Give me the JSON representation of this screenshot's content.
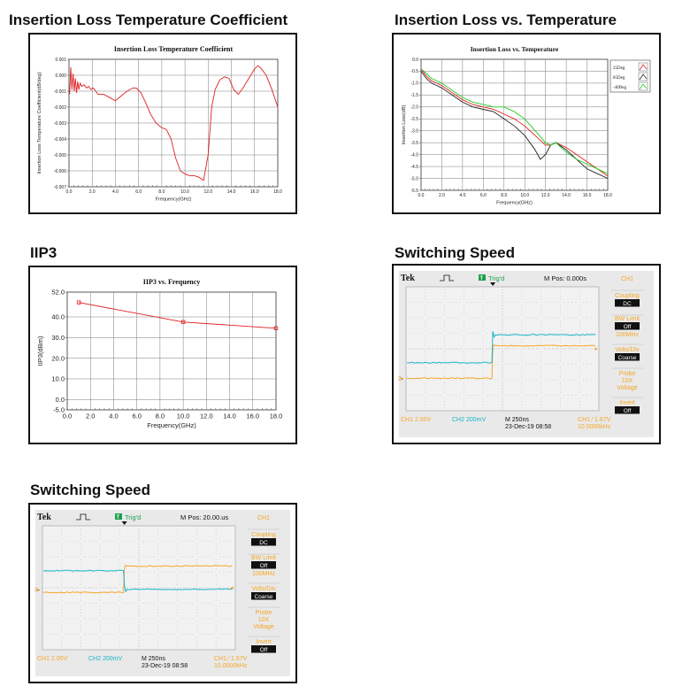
{
  "sections": {
    "il_coeff": "Insertion Loss Temperature Coefficient",
    "il_temp": "Insertion Loss vs. Temperature",
    "iip3": "IIP3",
    "sw1": "Switching Speed",
    "sw2": "Switching Speed"
  },
  "colors": {
    "red": "#e02020",
    "black": "#222222",
    "green": "#22cc22",
    "cyan": "#18b4c4",
    "orange": "#f5a623",
    "grid": "#7a7a7a"
  },
  "chart_data": [
    {
      "id": "il_coeff",
      "type": "line",
      "title": "Insertion Loss Temperature Coefficient",
      "xlabel": "Frequency(GHz)",
      "ylabel": "Insertion Loss Temperature Coefficient(dB/deg)",
      "xlim": [
        0,
        18
      ],
      "ylim": [
        -0.007,
        0.001
      ],
      "xticks": [
        "0.0",
        "2.0",
        "4.0",
        "6.0",
        "8.0",
        "10.0",
        "12.0",
        "14.0",
        "16.0",
        "18.0"
      ],
      "yticks": [
        "0.001",
        "0.000",
        "-0.001",
        "-0.002",
        "-0.003",
        "-0.004",
        "-0.005",
        "-0.006",
        "-0.007"
      ],
      "grid": true,
      "series": [
        {
          "color": "#e02020",
          "x": [
            0.05,
            0.15,
            0.25,
            0.35,
            0.45,
            0.55,
            0.65,
            0.75,
            0.85,
            0.95,
            1.1,
            1.3,
            1.5,
            1.7,
            1.9,
            2.1,
            2.3,
            2.5,
            3.0,
            3.5,
            4.0,
            4.5,
            5.0,
            5.5,
            5.8,
            6.2,
            6.6,
            7.0,
            7.5,
            8.0,
            8.4,
            8.8,
            9.2,
            9.6,
            10.0,
            10.4,
            10.8,
            11.2,
            11.6,
            12.0,
            12.3,
            12.6,
            13.0,
            13.4,
            13.8,
            14.2,
            14.6,
            15.0,
            15.5,
            16.0,
            16.3,
            16.6,
            17.0,
            17.5,
            18.0
          ],
          "y": [
            -0.0012,
            0.0005,
            -0.0009,
            0.0001,
            -0.001,
            -0.0002,
            -0.0011,
            -0.0004,
            -0.0009,
            -0.0005,
            -0.0007,
            -0.0006,
            -0.0008,
            -0.0007,
            -0.0009,
            -0.0008,
            -0.001,
            -0.0012,
            -0.0012,
            -0.0014,
            -0.0016,
            -0.0013,
            -0.001,
            -0.0008,
            -0.0008,
            -0.0011,
            -0.0017,
            -0.0024,
            -0.003,
            -0.0033,
            -0.0034,
            -0.004,
            -0.0052,
            -0.006,
            -0.0062,
            -0.0063,
            -0.0063,
            -0.0064,
            -0.0066,
            -0.005,
            -0.002,
            -0.0009,
            -0.0003,
            -0.0001,
            -0.0002,
            -0.0009,
            -0.0012,
            -0.0008,
            -0.0002,
            0.0004,
            0.0006,
            0.0004,
            0.0,
            -0.0009,
            -0.002
          ]
        }
      ]
    },
    {
      "id": "il_temp",
      "type": "line",
      "title": "Insertion Loss vs. Temperature",
      "xlabel": "Frequency(GHz)",
      "ylabel": "Insertion Loss(dB)",
      "xlim": [
        0,
        18
      ],
      "ylim": [
        -5.5,
        0
      ],
      "xticks": [
        "0.0",
        "2.0",
        "4.0",
        "6.0",
        "8.0",
        "10.0",
        "12.0",
        "14.0",
        "16.0",
        "18.0"
      ],
      "yticks": [
        "0.0",
        "-0.5",
        "-1.0",
        "-1.5",
        "-2.0",
        "-2.5",
        "-3.0",
        "-3.5",
        "-4.0",
        "-4.5",
        "-5.0",
        "-5.5"
      ],
      "grid": true,
      "legend": "top-right",
      "series": [
        {
          "name": "25Deg",
          "color": "#e02020",
          "x": [
            0,
            0.5,
            1,
            1.5,
            2,
            3,
            4,
            5,
            6,
            7,
            8,
            9,
            10,
            11,
            12,
            12.5,
            13,
            13.5,
            14,
            15,
            16,
            17,
            18
          ],
          "y": [
            -0.4,
            -0.7,
            -0.9,
            -1.0,
            -1.1,
            -1.4,
            -1.7,
            -1.9,
            -2.0,
            -2.1,
            -2.3,
            -2.5,
            -2.8,
            -3.2,
            -3.6,
            -3.6,
            -3.5,
            -3.6,
            -3.7,
            -4.0,
            -4.3,
            -4.6,
            -4.9
          ]
        },
        {
          "name": "85Deg",
          "color": "#222222",
          "x": [
            0,
            0.5,
            1,
            1.5,
            2,
            3,
            4,
            5,
            6,
            7,
            8,
            9,
            10,
            11,
            11.5,
            12,
            12.5,
            13,
            14,
            15,
            16,
            17,
            18
          ],
          "y": [
            -0.5,
            -0.8,
            -1.0,
            -1.1,
            -1.2,
            -1.5,
            -1.8,
            -2.0,
            -2.1,
            -2.2,
            -2.5,
            -2.8,
            -3.2,
            -3.8,
            -4.2,
            -4.0,
            -3.6,
            -3.5,
            -3.8,
            -4.2,
            -4.6,
            -4.8,
            -5.0
          ]
        },
        {
          "name": "-40Deg",
          "color": "#22cc22",
          "x": [
            0,
            0.5,
            1,
            1.5,
            2,
            3,
            4,
            5,
            6,
            7,
            8,
            9,
            10,
            11,
            12,
            12.5,
            13,
            13.5,
            14,
            15,
            16,
            17,
            18
          ],
          "y": [
            -0.4,
            -0.6,
            -0.8,
            -0.9,
            -1.0,
            -1.3,
            -1.6,
            -1.8,
            -1.9,
            -2.0,
            -2.0,
            -2.2,
            -2.5,
            -3.0,
            -3.5,
            -3.6,
            -3.5,
            -3.7,
            -3.9,
            -4.2,
            -4.4,
            -4.6,
            -4.8
          ]
        }
      ]
    },
    {
      "id": "iip3",
      "type": "line",
      "title": "IIP3 vs. Frequency",
      "xlabel": "Frequency(GHz)",
      "ylabel": "IIP3(dBm)",
      "xlim": [
        0,
        18
      ],
      "ylim": [
        -5,
        52
      ],
      "ytick_values": [
        52,
        40,
        30,
        20,
        10,
        0,
        -5
      ],
      "xticks": [
        "0.0",
        "2.0",
        "4.0",
        "6.0",
        "8.0",
        "10.0",
        "12.0",
        "14.0",
        "16.0",
        "18.0"
      ],
      "yticks": [
        "52.0",
        "40.0",
        "30.0",
        "20.0",
        "10.0",
        "0.0",
        "-5.0"
      ],
      "grid": true,
      "series": [
        {
          "color": "#e02020",
          "x": [
            1,
            10,
            18
          ],
          "y": [
            47,
            37.5,
            34.5
          ]
        }
      ]
    }
  ],
  "scopes": [
    {
      "id": "sw1",
      "brand": "Tek",
      "trig": "Trig'd",
      "mpos": "M Pos: 0.000s",
      "ch_header": "CH1",
      "coupling_label": "Coupling",
      "coupling_value": "DC",
      "bw_label": "BW Limit",
      "bw_value": "Off",
      "bw_freq": "100MHz",
      "volts_label": "Volts/Div",
      "volts_value": "Coarse",
      "probe_label": "Probe",
      "probe_value1": "10X",
      "probe_value2": "Voltage",
      "invert_label": "Invert",
      "invert_value": "Off",
      "ch1": "CH1  2.00V",
      "ch2": "CH2  200mV",
      "m": "M 250ns",
      "date": "23-Dec-19 08:58",
      "trig_ch": "CH1 ⁄ 1.67V",
      "freq": "10.0000kHz",
      "edge_div": 4.5,
      "orange_low_div": 5.9,
      "orange_high_div": 3.8,
      "cyan_high_div": 4.9,
      "cyan_low_div": 3.1
    },
    {
      "id": "sw2",
      "brand": "Tek",
      "trig": "Trig'd",
      "mpos": "M Pos: 20.00.us",
      "ch_header": "CH1",
      "coupling_label": "Coupling",
      "coupling_value": "DC",
      "bw_label": "BW Limit",
      "bw_value": "Off",
      "bw_freq": "100MHz",
      "volts_label": "Volts/Div",
      "volts_value": "Coarse",
      "probe_label": "Probe",
      "probe_value1": "10X",
      "probe_value2": "Voltage",
      "invert_label": "Invert",
      "invert_value": "Off",
      "ch1": "CH1  2.00V",
      "ch2": "CH2  200mV",
      "m": "M 250ns",
      "date": "23-Dec-19 08:58",
      "trig_ch": "CH1 ⁄ 1.67V",
      "freq": "10.0000kHz",
      "edge_div": 4.25,
      "orange_high_div": 2.6,
      "orange_low_div": 4.3,
      "cyan_low_div": 4.1,
      "cyan_high_div": 2.9
    }
  ]
}
